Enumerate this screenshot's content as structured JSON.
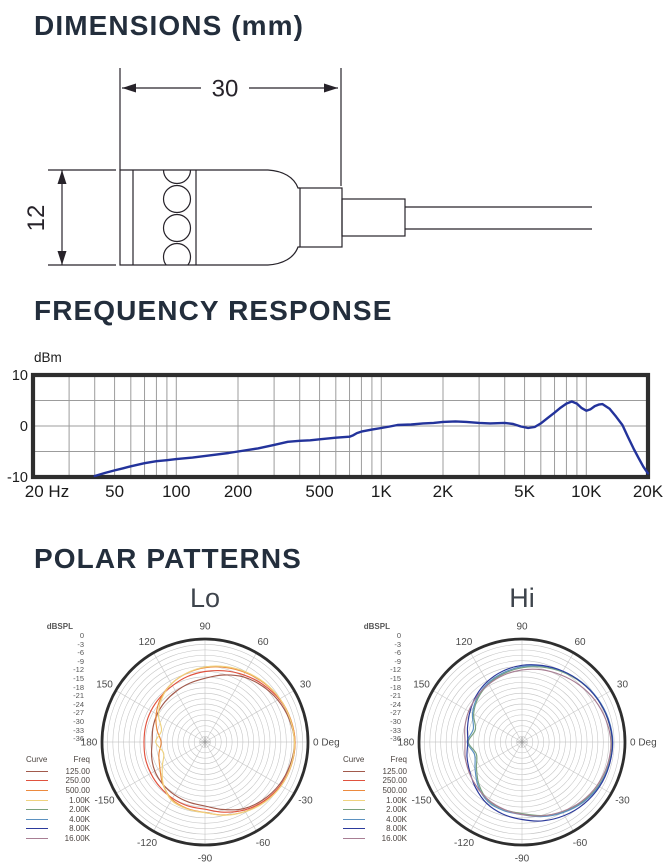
{
  "sections": {
    "dimensions": {
      "title": "DIMENSIONS (mm)",
      "length_label": "30",
      "diameter_label": "12"
    },
    "frequency_response": {
      "title": "FREQUENCY RESPONSE"
    },
    "polar_patterns": {
      "title": "POLAR PATTERNS"
    }
  },
  "colors": {
    "heading": "#232e3c",
    "drawing_line": "#27232a",
    "chart_frame": "#2e2e2e",
    "grid_line": "#9c9c9c",
    "fr_curve": "#23339b",
    "polar_ring": "#c2c2c2",
    "polar_spoke": "#cdcdcd",
    "label_text": "#4a4a4a"
  },
  "polar": {
    "angle_step": 15,
    "ring_divisions": 19,
    "scale_min_db": -38,
    "scale_label": "dBSPL",
    "scale_ticks": [
      "0",
      "-3",
      "-6",
      "-9",
      "-12",
      "-15",
      "-18",
      "-21",
      "-24",
      "-27",
      "-30",
      "-33",
      "-36"
    ],
    "angle_labels": [
      {
        "deg": 90,
        "label": "90"
      },
      {
        "deg": 60,
        "label": "60"
      },
      {
        "deg": 120,
        "label": "120"
      },
      {
        "deg": 30,
        "label": "30"
      },
      {
        "deg": 150,
        "label": "150"
      },
      {
        "deg": 0,
        "label": "0 Deg"
      },
      {
        "deg": 180,
        "label": "180"
      },
      {
        "deg": 330,
        "label": "-30"
      },
      {
        "deg": 210,
        "label": "-150"
      },
      {
        "deg": 300,
        "label": "-60"
      },
      {
        "deg": 240,
        "label": "-120"
      },
      {
        "deg": 270,
        "label": "-90"
      }
    ],
    "legend": {
      "curve_header": "Curve",
      "freq_header": "Freq",
      "items": [
        {
          "label": "125.00",
          "color": "#a25a4c"
        },
        {
          "label": "250.00",
          "color": "#e0523e"
        },
        {
          "label": "500.00",
          "color": "#ec8a3e"
        },
        {
          "label": "1.00K",
          "color": "#efd27f"
        },
        {
          "label": "2.00K",
          "color": "#79a17e"
        },
        {
          "label": "4.00K",
          "color": "#5b91c0"
        },
        {
          "label": "8.00K",
          "color": "#2c3a9c"
        },
        {
          "label": "16.00K",
          "color": "#a87e93"
        }
      ]
    }
  },
  "chart_data": [
    {
      "type": "line",
      "title": "FREQUENCY RESPONSE",
      "ylabel": "dBm",
      "xscale": "log",
      "xlim": [
        20,
        20000
      ],
      "ylim": [
        -10,
        10
      ],
      "grid": true,
      "y_ticks": [
        {
          "v": 10,
          "label": "10"
        },
        {
          "v": 0,
          "label": "0"
        },
        {
          "v": -10,
          "label": "-10"
        }
      ],
      "grid_db": [
        5,
        0,
        -5
      ],
      "grid_freqs": [
        30,
        40,
        50,
        60,
        70,
        80,
        90,
        100,
        200,
        300,
        400,
        500,
        600,
        700,
        800,
        900,
        1000,
        2000,
        3000,
        4000,
        5000,
        6000,
        7000,
        8000,
        9000,
        10000
      ],
      "x_ticks": [
        {
          "f": 20,
          "label": "20 Hz",
          "dx": 14
        },
        {
          "f": 50,
          "label": "50"
        },
        {
          "f": 100,
          "label": "100"
        },
        {
          "f": 200,
          "label": "200"
        },
        {
          "f": 500,
          "label": "500"
        },
        {
          "f": 1000,
          "label": "1K"
        },
        {
          "f": 2000,
          "label": "2K"
        },
        {
          "f": 5000,
          "label": "5K"
        },
        {
          "f": 10000,
          "label": "10K"
        },
        {
          "f": 20000,
          "label": "20K"
        }
      ],
      "series": [
        {
          "name": "frequency-response",
          "color": "#23339b",
          "points": [
            [
              40,
              -9.8
            ],
            [
              45,
              -9.2
            ],
            [
              50,
              -8.7
            ],
            [
              55,
              -8.3
            ],
            [
              60,
              -7.9
            ],
            [
              70,
              -7.3
            ],
            [
              80,
              -6.9
            ],
            [
              90,
              -6.7
            ],
            [
              100,
              -6.5
            ],
            [
              120,
              -6.2
            ],
            [
              150,
              -5.7
            ],
            [
              180,
              -5.3
            ],
            [
              200,
              -5.0
            ],
            [
              250,
              -4.4
            ],
            [
              300,
              -3.7
            ],
            [
              350,
              -3.1
            ],
            [
              400,
              -2.9
            ],
            [
              450,
              -2.8
            ],
            [
              500,
              -2.6
            ],
            [
              600,
              -2.3
            ],
            [
              700,
              -2.1
            ],
            [
              730,
              -1.8
            ],
            [
              760,
              -1.4
            ],
            [
              800,
              -1.1
            ],
            [
              900,
              -0.7
            ],
            [
              1000,
              -0.4
            ],
            [
              1100,
              -0.1
            ],
            [
              1200,
              0.2
            ],
            [
              1400,
              0.3
            ],
            [
              1600,
              0.5
            ],
            [
              1800,
              0.6
            ],
            [
              2000,
              0.8
            ],
            [
              2300,
              0.9
            ],
            [
              2600,
              0.8
            ],
            [
              3000,
              0.6
            ],
            [
              3400,
              0.5
            ],
            [
              4000,
              0.6
            ],
            [
              4400,
              0.4
            ],
            [
              4800,
              -0.1
            ],
            [
              5200,
              -0.4
            ],
            [
              5600,
              -0.2
            ],
            [
              6000,
              0.5
            ],
            [
              6500,
              1.6
            ],
            [
              7000,
              2.6
            ],
            [
              7500,
              3.6
            ],
            [
              8000,
              4.4
            ],
            [
              8500,
              4.8
            ],
            [
              9000,
              4.4
            ],
            [
              9500,
              3.5
            ],
            [
              10000,
              3.0
            ],
            [
              10500,
              3.3
            ],
            [
              11000,
              3.9
            ],
            [
              11500,
              4.2
            ],
            [
              12000,
              4.3
            ],
            [
              13000,
              3.4
            ],
            [
              14000,
              1.8
            ],
            [
              15000,
              0.2
            ],
            [
              16000,
              -2.2
            ],
            [
              17000,
              -4.4
            ],
            [
              18000,
              -6.3
            ],
            [
              19000,
              -8.0
            ],
            [
              20000,
              -9.3
            ]
          ]
        }
      ]
    },
    {
      "type": "polar",
      "title": "Lo",
      "series": [
        {
          "name": "125.00",
          "color": "#a25a4c",
          "values_db": [
            -5.0,
            -5.8,
            -7.0,
            -8.5,
            -10.2,
            -12.4,
            -14.5,
            -15.6,
            -16.5,
            -17.1,
            -17.6,
            -18.1,
            -18.5,
            -17.6,
            -16.6,
            -16.0,
            -15.5,
            -15.0,
            -14.4,
            -12.2,
            -9.6,
            -7.8,
            -6.4,
            -5.5
          ]
        },
        {
          "name": "250.00",
          "color": "#e0523e",
          "values_db": [
            -4.8,
            -5.4,
            -6.4,
            -7.9,
            -9.4,
            -10.8,
            -12.0,
            -13.0,
            -14.0,
            -14.6,
            -15.0,
            -15.3,
            -15.5,
            -15.2,
            -14.9,
            -14.5,
            -14.0,
            -13.6,
            -13.2,
            -11.2,
            -9.0,
            -7.2,
            -5.9,
            -5.1
          ]
        },
        {
          "name": "500.00",
          "color": "#ec8a3e",
          "values_db": [
            -4.8,
            -5.3,
            -6.1,
            -7.2,
            -8.4,
            -9.5,
            -10.6,
            -11.8,
            -13.2,
            -15.0,
            -17.2,
            -19.6,
            -21.8,
            -20.4,
            -18.8,
            -16.0,
            -13.6,
            -12.6,
            -12.0,
            -10.1,
            -8.4,
            -6.8,
            -5.6,
            -5.0
          ]
        },
        {
          "name": "1.00K",
          "color": "#efd27f",
          "values_db": [
            -5.0,
            -5.5,
            -6.1,
            -7.0,
            -8.1,
            -9.2,
            -10.3,
            -11.7,
            -13.2,
            -15.4,
            -18.2,
            -21.4,
            -19.8,
            -22.2,
            -19.8,
            -16.2,
            -13.2,
            -12.4,
            -11.9,
            -10.0,
            -8.3,
            -6.7,
            -5.6,
            -5.1
          ]
        }
      ]
    },
    {
      "type": "polar",
      "title": "Hi",
      "series": [
        {
          "name": "2.00K",
          "color": "#79a17e",
          "values_db": [
            -4.8,
            -5.3,
            -6.0,
            -7.0,
            -8.2,
            -9.4,
            -10.6,
            -11.9,
            -13.3,
            -15.1,
            -17.4,
            -20.2,
            -18.2,
            -20.6,
            -18.6,
            -15.6,
            -13.1,
            -12.2,
            -11.6,
            -9.9,
            -8.2,
            -6.7,
            -5.5,
            -5.0
          ]
        },
        {
          "name": "4.00K",
          "color": "#5b91c0",
          "values_db": [
            -4.5,
            -5.0,
            -5.8,
            -6.8,
            -7.9,
            -9.0,
            -10.2,
            -11.5,
            -12.9,
            -14.7,
            -16.9,
            -19.4,
            -17.8,
            -19.9,
            -18.0,
            -15.1,
            -12.7,
            -11.8,
            -11.2,
            -9.5,
            -7.9,
            -6.4,
            -5.3,
            -4.8
          ]
        },
        {
          "name": "8.00K",
          "color": "#2c3a9c",
          "values_db": [
            -4.6,
            -5.2,
            -6.0,
            -6.9,
            -7.8,
            -8.8,
            -9.7,
            -10.9,
            -12.3,
            -14.0,
            -15.8,
            -17.2,
            -18.0,
            -17.0,
            -15.8,
            -13.9,
            -11.9,
            -10.5,
            -9.4,
            -7.9,
            -6.7,
            -5.7,
            -5.0,
            -4.7
          ]
        },
        {
          "name": "16.00K",
          "color": "#a87e93",
          "values_db": [
            -5.2,
            -6.0,
            -7.0,
            -8.2,
            -9.4,
            -10.4,
            -11.4,
            -12.4,
            -13.4,
            -14.4,
            -15.3,
            -16.2,
            -17.0,
            -16.3,
            -15.5,
            -14.5,
            -13.3,
            -12.3,
            -11.3,
            -9.8,
            -8.4,
            -7.0,
            -6.0,
            -5.4
          ]
        }
      ]
    }
  ]
}
